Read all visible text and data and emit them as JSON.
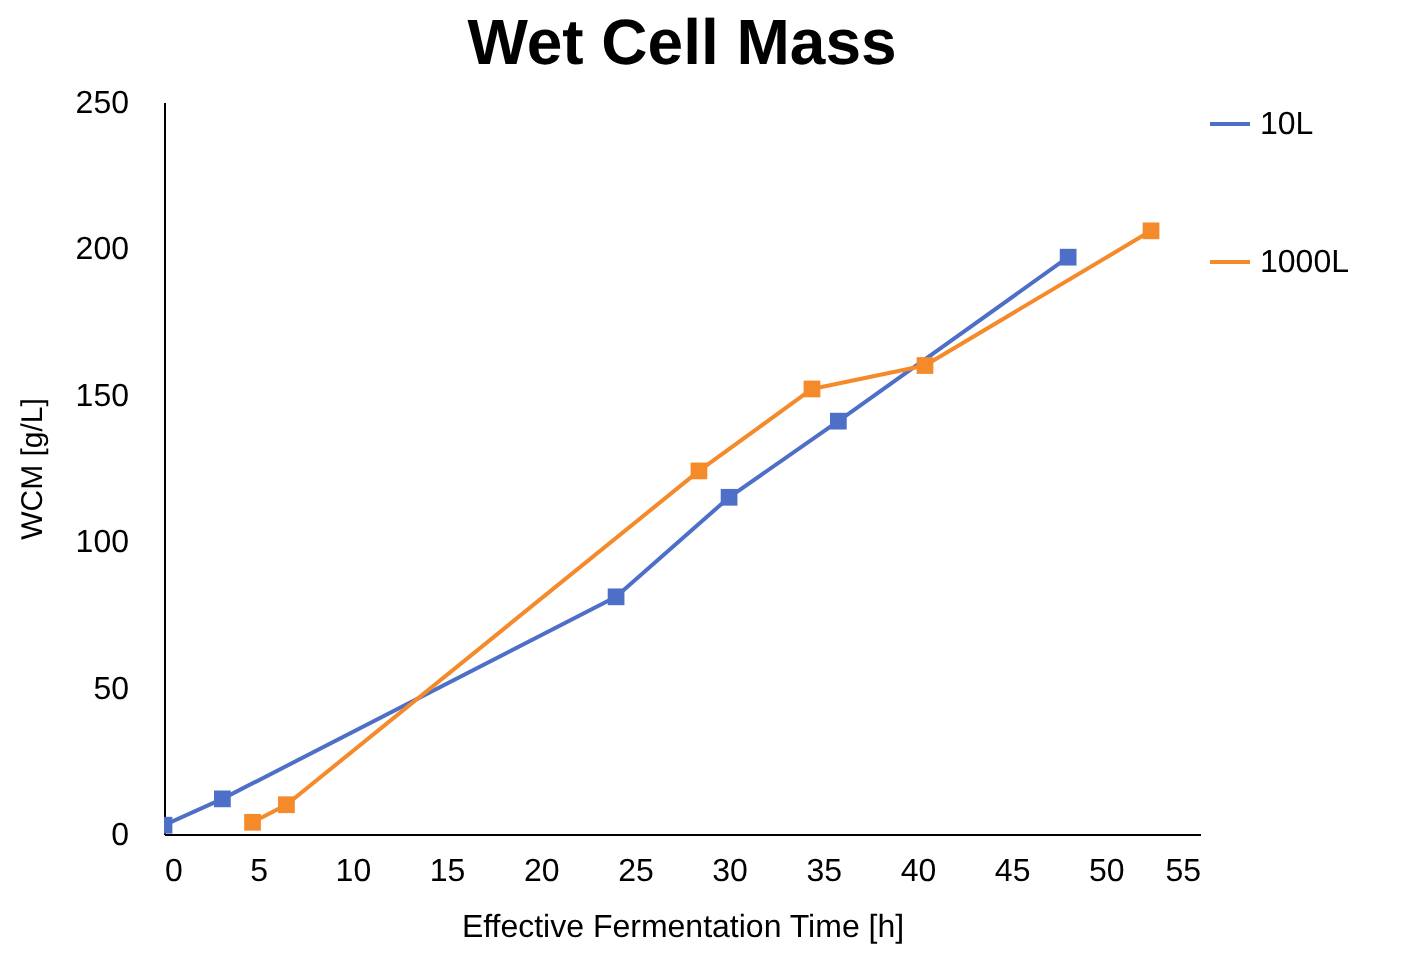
{
  "chart_data": {
    "type": "line",
    "title": "Wet Cell Mass",
    "xlabel": "Effective Fermentation Time [h]",
    "ylabel": "WCM [g/L]",
    "xlim": [
      0,
      55
    ],
    "xticks": [
      0,
      5,
      10,
      15,
      20,
      25,
      30,
      35,
      40,
      45,
      50,
      55
    ],
    "ylim": [
      0,
      250
    ],
    "yticks": [
      0,
      50,
      100,
      150,
      200,
      250
    ],
    "grid": false,
    "legend": "right",
    "marker": "square",
    "line_style": "solid",
    "series": [
      {
        "name": "10L",
        "color": "#4e6fc7",
        "x": [
          0,
          3.1,
          24,
          30,
          35.8,
          48
        ],
        "values": [
          3,
          12,
          81,
          115,
          141,
          197
        ]
      },
      {
        "name": "1000L",
        "color": "#f58a2a",
        "x": [
          4.7,
          6.5,
          28.4,
          34.4,
          40.4,
          52.4
        ],
        "values": [
          4,
          10,
          124,
          152,
          160,
          206
        ]
      }
    ]
  }
}
